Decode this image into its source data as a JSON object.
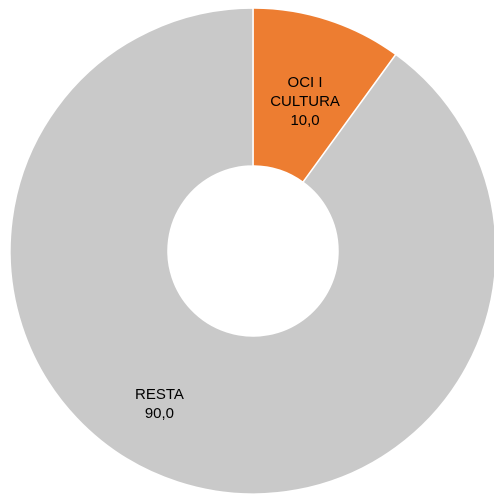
{
  "chart_data": {
    "type": "pie",
    "donut": true,
    "title": "",
    "slices": [
      {
        "label_lines": [
          "OCI I",
          "CULTURA"
        ],
        "value": 10.0,
        "value_label": "10,0",
        "color": "#ed7d31"
      },
      {
        "label_lines": [
          "RESTA"
        ],
        "value": 90.0,
        "value_label": "90,0",
        "color": "#c9c9c9"
      }
    ],
    "background": "#ffffff",
    "hole_color": "#ffffff",
    "legend": "none"
  }
}
